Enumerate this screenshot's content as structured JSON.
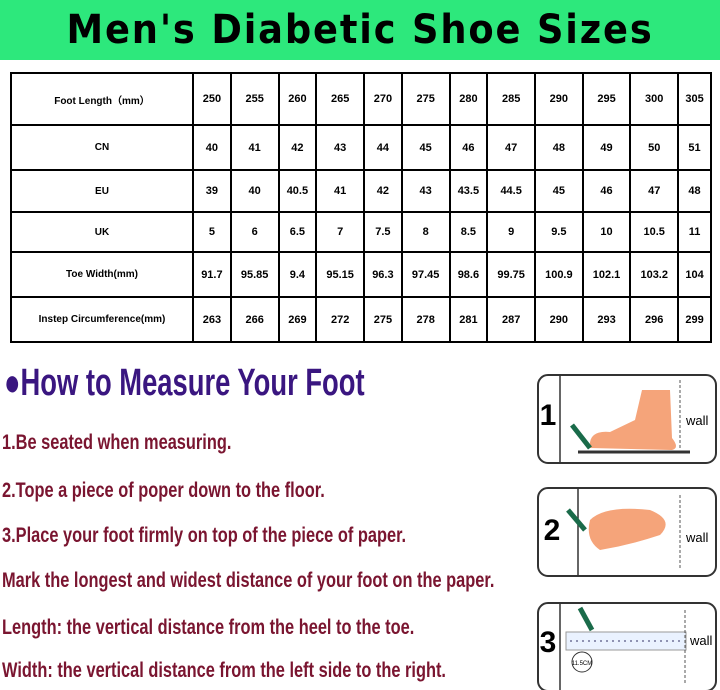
{
  "title": "Men's Diabetic Shoe Sizes",
  "table": {
    "rows": [
      {
        "label": "Foot Length（mm）",
        "cells": [
          "250",
          "255",
          "260",
          "265",
          "270",
          "275",
          "280",
          "285",
          "290",
          "295",
          "300",
          "305"
        ]
      },
      {
        "label": "CN",
        "cells": [
          "40",
          "41",
          "42",
          "43",
          "44",
          "45",
          "46",
          "47",
          "48",
          "49",
          "50",
          "51"
        ]
      },
      {
        "label": "EU",
        "cells": [
          "39",
          "40",
          "40.5",
          "41",
          "42",
          "43",
          "43.5",
          "44.5",
          "45",
          "46",
          "47",
          "48"
        ]
      },
      {
        "label": "UK",
        "cells": [
          "5",
          "6",
          "6.5",
          "7",
          "7.5",
          "8",
          "8.5",
          "9",
          "9.5",
          "10",
          "10.5",
          "11"
        ]
      },
      {
        "label": "Toe Width(mm)",
        "cells": [
          "91.7",
          "95.85",
          "9.4",
          "95.15",
          "96.3",
          "97.45",
          "98.6",
          "99.75",
          "100.9",
          "102.1",
          "103.2",
          "104"
        ]
      },
      {
        "label": "Instep Circumference(mm)",
        "cells": [
          "263",
          "266",
          "269",
          "272",
          "275",
          "278",
          "281",
          "287",
          "290",
          "293",
          "296",
          "299"
        ]
      }
    ]
  },
  "guide": {
    "heading": "●How to Measure Your Foot",
    "lines": [
      "1.Be seated when measuring.",
      "2.Tope a piece of poper down to the floor.",
      "3.Place your foot firmly on top of the piece of paper.",
      "Mark the longest and widest distance of your foot on the paper.",
      "Length: the vertical distance from the heel to the toe.",
      "Width: the vertical distance from the left side to the right."
    ]
  },
  "diagrams": [
    {
      "step": "1",
      "label": "wall"
    },
    {
      "step": "2",
      "label": "wall"
    },
    {
      "step": "3",
      "label": "wall",
      "measure": "11.5CM"
    }
  ]
}
